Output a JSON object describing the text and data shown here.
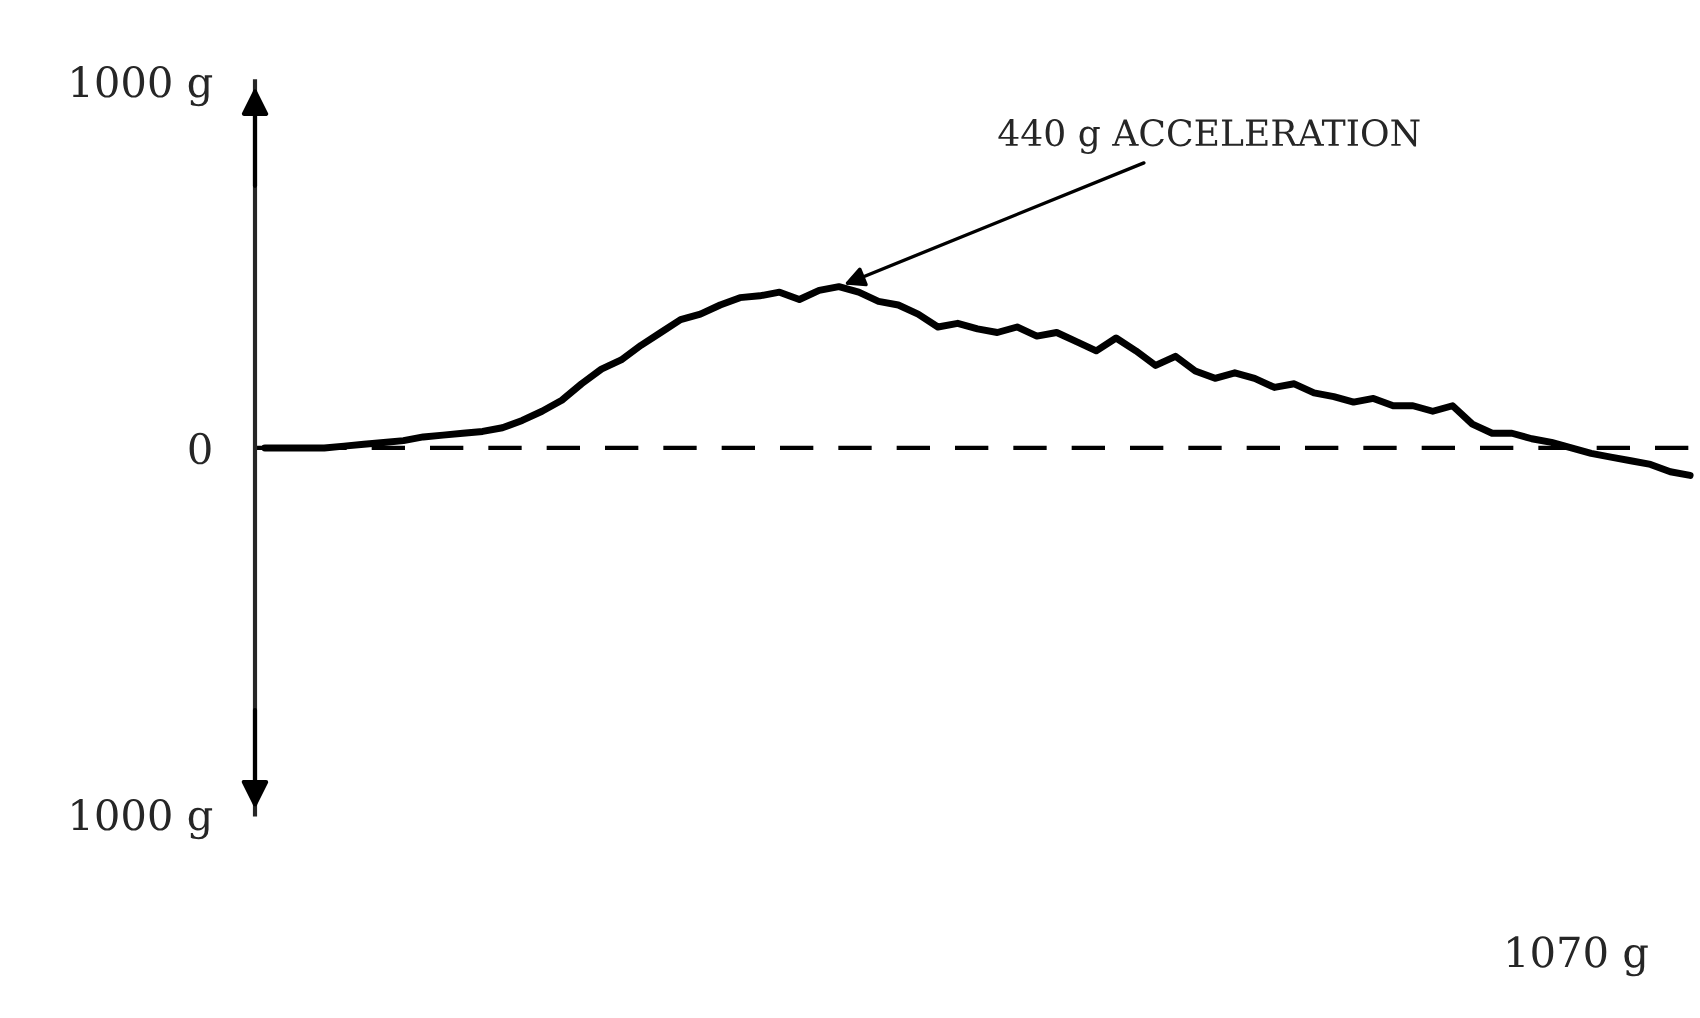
{
  "chart_data": {
    "type": "line",
    "categories": [
      null,
      null,
      null,
      null,
      null,
      null,
      null,
      null,
      null,
      null,
      null,
      null,
      null,
      null,
      null,
      null,
      null,
      null,
      null,
      null,
      null,
      null,
      null,
      null,
      null,
      null,
      null,
      null,
      null,
      null,
      null,
      null,
      null,
      null,
      null,
      null,
      null,
      null,
      null,
      null,
      null,
      null,
      null,
      null,
      null,
      null,
      null,
      null,
      null,
      null,
      null,
      null,
      null,
      null,
      null,
      null,
      null,
      null,
      null,
      null,
      null,
      null,
      null,
      null,
      null,
      null,
      null,
      null,
      null,
      null,
      null,
      null,
      null
    ],
    "series": [
      {
        "color": "#000000",
        "values": [
          0,
          0,
          0,
          0,
          5,
          10,
          15,
          20,
          30,
          35,
          40,
          45,
          55,
          75,
          100,
          130,
          175,
          215,
          240,
          280,
          315,
          350,
          365,
          390,
          410,
          415,
          425,
          405,
          430,
          440,
          425,
          400,
          390,
          365,
          330,
          340,
          325,
          315,
          330,
          305,
          315,
          290,
          265,
          300,
          265,
          225,
          250,
          210,
          190,
          205,
          190,
          165,
          175,
          150,
          140,
          125,
          135,
          115,
          115,
          100,
          115,
          65,
          40,
          40,
          25,
          15,
          0,
          -15,
          -25,
          -35,
          -45,
          -65,
          -75
        ]
      }
    ],
    "ylim": [
      -1000,
      1000
    ],
    "yticks": [
      {
        "value": 1000,
        "label": "1000 g"
      },
      0,
      {
        "value": -1000,
        "label": "1000 g"
      }
    ],
    "tick_labels": "y",
    "grid": false,
    "legend": false,
    "marker": "none",
    "line_style": "solid",
    "ref_lines": [
      {
        "axis": "y",
        "value": 0,
        "line_style": "dashed",
        "color": "#000000"
      }
    ],
    "annotations": [
      "440 g ACCELERATION",
      "1070 g"
    ]
  }
}
